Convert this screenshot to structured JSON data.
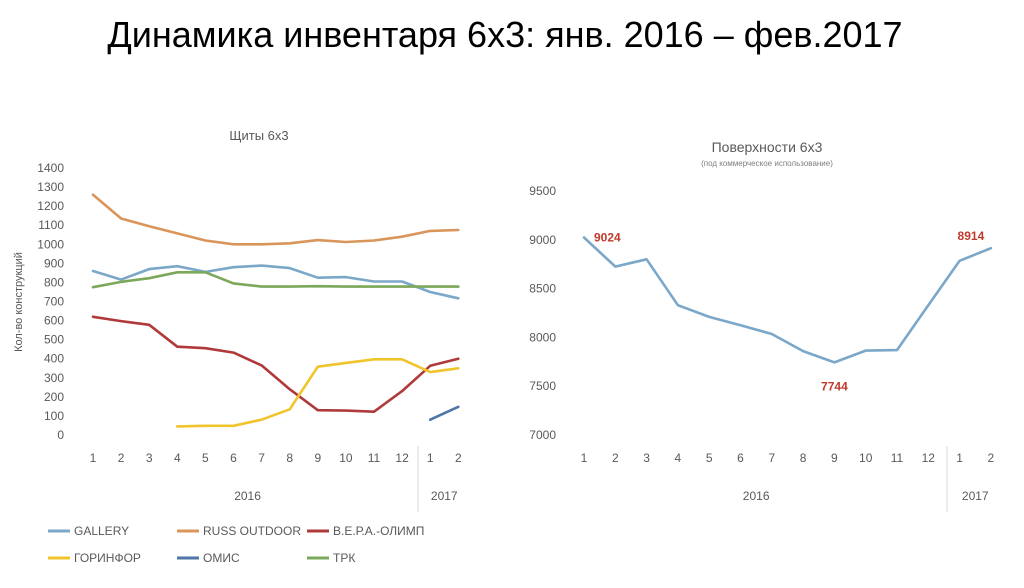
{
  "slide": {
    "title": "Динамика инвентаря 6х3: янв. 2016 – фев.2017"
  },
  "chart_data": [
    {
      "type": "line",
      "title": "Щиты 6х3",
      "subtitle": "",
      "xlabel": "",
      "ylabel": "Кол-во конструкций",
      "categories": [
        "1",
        "2",
        "3",
        "4",
        "5",
        "6",
        "7",
        "8",
        "9",
        "10",
        "11",
        "12",
        "1",
        "2"
      ],
      "year_groups": [
        {
          "label": "2016",
          "start": 0,
          "end": 11
        },
        {
          "label": "2017",
          "start": 12,
          "end": 13
        }
      ],
      "ylim": [
        0,
        1400
      ],
      "yticks": [
        0,
        100,
        200,
        300,
        400,
        500,
        600,
        700,
        800,
        900,
        1000,
        1100,
        1200,
        1300,
        1400
      ],
      "grid": false,
      "legend": "bottom",
      "series": [
        {
          "name": "GALLERY",
          "color": "#7ba7c9",
          "values": [
            860,
            815,
            870,
            885,
            855,
            880,
            888,
            875,
            825,
            828,
            805,
            805,
            750,
            717
          ]
        },
        {
          "name": "RUSS OUTDOOR",
          "color": "#d9955a",
          "values": [
            1260,
            1135,
            1095,
            1057,
            1020,
            1000,
            1000,
            1005,
            1022,
            1012,
            1020,
            1040,
            1070,
            1075
          ]
        },
        {
          "name": "В.Е.Р.А.-ОЛИМП",
          "color": "#b03a3a",
          "values": [
            620,
            597,
            578,
            463,
            455,
            432,
            365,
            240,
            130,
            128,
            122,
            230,
            363,
            400
          ]
        },
        {
          "name": "ГОРИНФОР",
          "color": "#f0c52c",
          "values": [
            null,
            null,
            null,
            45,
            48,
            48,
            80,
            135,
            358,
            378,
            397,
            397,
            330,
            350
          ]
        },
        {
          "name": "ОМИС",
          "color": "#4f76a8",
          "values": [
            null,
            null,
            null,
            null,
            null,
            null,
            null,
            null,
            null,
            null,
            null,
            null,
            80,
            148
          ]
        },
        {
          "name": "ТРК",
          "color": "#7ca85a",
          "values": [
            775,
            803,
            822,
            853,
            853,
            795,
            778,
            778,
            780,
            778,
            778,
            778,
            778,
            778
          ]
        }
      ]
    },
    {
      "type": "line",
      "title": "Поверхности 6х3",
      "subtitle": "(под коммерческое использование)",
      "xlabel": "",
      "ylabel": "",
      "categories": [
        "1",
        "2",
        "3",
        "4",
        "5",
        "6",
        "7",
        "8",
        "9",
        "10",
        "11",
        "12",
        "1",
        "2"
      ],
      "year_groups": [
        {
          "label": "2016",
          "start": 0,
          "end": 11
        },
        {
          "label": "2017",
          "start": 12,
          "end": 13
        }
      ],
      "ylim": [
        7000,
        9500
      ],
      "yticks": [
        7000,
        7500,
        8000,
        8500,
        9000,
        9500
      ],
      "grid": false,
      "legend": "none",
      "series": [
        {
          "name": "",
          "color": "#7ba7c9",
          "values": [
            9024,
            8725,
            8800,
            8330,
            8210,
            8125,
            8035,
            7860,
            7744,
            7865,
            7870,
            8330,
            8785,
            8914
          ]
        }
      ],
      "annotations": [
        {
          "index": 0,
          "text": "9024",
          "color": "#c0392b",
          "pos": "right"
        },
        {
          "index": 8,
          "text": "7744",
          "color": "#c0392b",
          "pos": "below"
        },
        {
          "index": 13,
          "text": "8914",
          "color": "#c0392b",
          "pos": "above-left"
        }
      ]
    }
  ]
}
